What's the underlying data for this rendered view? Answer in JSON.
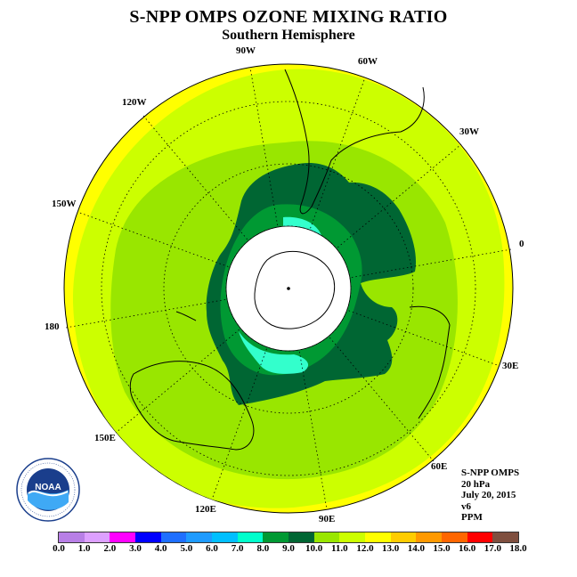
{
  "header": {
    "title": "S-NPP OMPS OZONE MIXING RATIO",
    "subtitle": "Southern Hemisphere"
  },
  "map": {
    "longitude_labels": [
      "90W",
      "60W",
      "30W",
      "0",
      "30E",
      "60E",
      "90E",
      "120E",
      "150E",
      "180",
      "150W",
      "120W"
    ],
    "contour_levels_ppm": {
      "outer_ring": "12.0-13.0",
      "mid_ring": "11.0-12.0",
      "inner_ring": "10.0-11.0",
      "vortex_edge": "9.0-10.0",
      "vortex_inner": "8.0-9.0",
      "vortex_core": "7.0-8.0",
      "no_data": "polar night (white)"
    },
    "colors": {
      "yellow": "#ffff00",
      "yellow_green": "#ccff00",
      "lime": "#99e600",
      "green": "#009933",
      "dark_green": "#006633",
      "cyan": "#33ffcc",
      "no_data": "#ffffff",
      "coast": "#000000"
    }
  },
  "info": {
    "instrument": "S-NPP OMPS",
    "level": "20 hPa",
    "date": "July 20, 2015",
    "version": "v6",
    "units": "PPM"
  },
  "colorbar": {
    "labels": [
      "0.0",
      "1.0",
      "2.0",
      "3.0",
      "4.0",
      "5.0",
      "6.0",
      "7.0",
      "8.0",
      "9.0",
      "10.0",
      "11.0",
      "12.0",
      "13.0",
      "14.0",
      "15.0",
      "16.0",
      "17.0",
      "18.0"
    ],
    "colors": [
      "#b87fe6",
      "#dda0ff",
      "#ff00ff",
      "#0000ff",
      "#1e6fff",
      "#1e9bff",
      "#00bfff",
      "#00ffcc",
      "#009933",
      "#006633",
      "#99e600",
      "#ccff00",
      "#ffff00",
      "#ffcc00",
      "#ff9900",
      "#ff6600",
      "#ff0000",
      "#7f4f3f"
    ]
  },
  "logo": {
    "text": "NOAA",
    "ring_text": "NATIONAL OCEANIC AND ATMOSPHERIC ADMINISTRATION · U.S. DEPARTMENT OF COMMERCE"
  }
}
